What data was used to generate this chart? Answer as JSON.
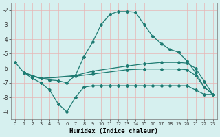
{
  "xlabel": "Humidex (Indice chaleur)",
  "xlim": [
    -0.5,
    23.5
  ],
  "ylim": [
    -9.5,
    -1.5
  ],
  "yticks": [
    -9,
    -8,
    -7,
    -6,
    -5,
    -4,
    -3,
    -2
  ],
  "xticks": [
    0,
    1,
    2,
    3,
    4,
    5,
    6,
    7,
    8,
    9,
    10,
    11,
    12,
    13,
    14,
    15,
    16,
    17,
    18,
    19,
    20,
    21,
    22,
    23
  ],
  "bg_color": "#d6f0ef",
  "line_color": "#1e7b72",
  "grid_color": "#e8b4b4",
  "lines": [
    {
      "x": [
        0,
        1,
        2,
        3,
        4,
        5,
        6,
        7,
        8,
        9,
        10,
        11,
        12,
        13,
        14,
        15,
        16,
        17,
        18,
        19,
        20,
        21,
        22,
        23
      ],
      "y": [
        -5.6,
        -6.3,
        -6.55,
        -6.7,
        -6.8,
        -6.85,
        -7.0,
        -6.5,
        -5.2,
        -4.2,
        -3.0,
        -2.3,
        -2.1,
        -2.1,
        -2.15,
        -3.0,
        -3.8,
        -4.3,
        -4.7,
        -4.9,
        -5.5,
        -6.3,
        -7.3,
        -7.8
      ]
    },
    {
      "x": [
        1,
        3,
        7,
        9,
        13,
        15,
        17,
        19,
        20,
        21,
        22,
        23
      ],
      "y": [
        -6.3,
        -6.7,
        -6.5,
        -6.2,
        -5.85,
        -5.7,
        -5.6,
        -5.6,
        -5.65,
        -6.0,
        -6.9,
        -7.8
      ]
    },
    {
      "x": [
        1,
        3,
        7,
        9,
        13,
        15,
        17,
        19,
        20,
        21,
        22,
        23
      ],
      "y": [
        -6.3,
        -6.7,
        -6.55,
        -6.4,
        -6.1,
        -6.05,
        -6.05,
        -6.05,
        -6.1,
        -6.5,
        -7.3,
        -7.8
      ]
    },
    {
      "x": [
        1,
        2,
        3,
        4,
        5,
        6,
        7,
        8,
        9,
        10,
        11,
        12,
        13,
        14,
        15,
        16,
        17,
        18,
        19,
        20,
        21,
        22,
        23
      ],
      "y": [
        -6.3,
        -6.7,
        -7.0,
        -7.5,
        -8.45,
        -9.0,
        -8.0,
        -7.3,
        -7.2,
        -7.2,
        -7.2,
        -7.2,
        -7.2,
        -7.2,
        -7.2,
        -7.2,
        -7.2,
        -7.2,
        -7.2,
        -7.2,
        -7.5,
        -7.8,
        -7.8
      ]
    }
  ]
}
